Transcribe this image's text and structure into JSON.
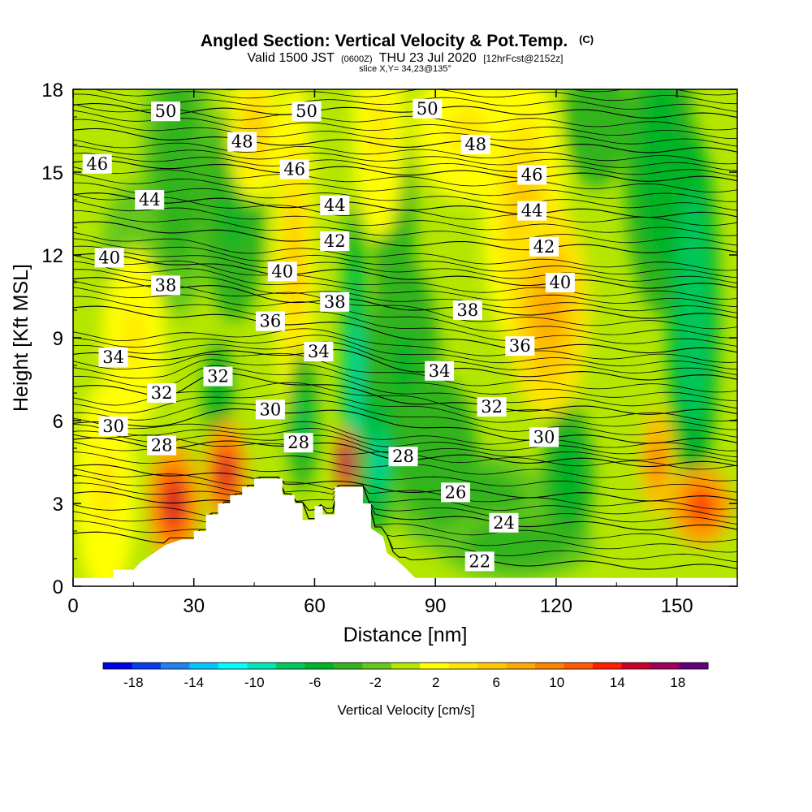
{
  "title": {
    "main": "Angled Section: Vertical Velocity & Pot.Temp.",
    "main_suffix": "(C)",
    "valid_prefix": "Valid 1500 JST",
    "valid_utc": "(0600Z)",
    "valid_date": "THU 23 Jul 2020",
    "forecast": "[12hrFcst@2152z]",
    "slice": "slice X,Y= 34,23@135°"
  },
  "chart_data": {
    "type": "heatmap",
    "xlabel": "Distance [nm]",
    "ylabel": "Height [Kft MSL]",
    "xlim": [
      0,
      165
    ],
    "ylim": [
      0,
      18
    ],
    "x_ticks": [
      "0",
      "30",
      "60",
      "90",
      "120",
      "150"
    ],
    "x_tick_values": [
      0,
      30,
      60,
      90,
      120,
      150
    ],
    "y_ticks": [
      "0",
      "3",
      "6",
      "9",
      "12",
      "15",
      "18"
    ],
    "y_tick_values": [
      0,
      3,
      6,
      9,
      12,
      15,
      18
    ],
    "colorbar": {
      "title": "Vertical Velocity [cm/s]",
      "tick_labels": [
        "-18",
        "-14",
        "-10",
        "-6",
        "-2",
        "2",
        "6",
        "10",
        "14",
        "18"
      ],
      "levels": [
        -20,
        -18,
        -16,
        -14,
        -12,
        -10,
        -8,
        -6,
        -4,
        -2,
        0,
        2,
        4,
        6,
        8,
        10,
        12,
        14,
        16,
        18,
        20
      ],
      "colors": [
        "#0000e6",
        "#0a3ceb",
        "#1e82f0",
        "#00c8ff",
        "#00ffff",
        "#00e6b4",
        "#00c85a",
        "#00b428",
        "#32b41e",
        "#64c81e",
        "#b4e600",
        "#ffff00",
        "#ffe600",
        "#ffc800",
        "#ffaa00",
        "#ff8200",
        "#ff5a00",
        "#ff1e00",
        "#c8002a",
        "#a0005a",
        "#640080"
      ]
    },
    "terrain_profile": [
      [
        0,
        0.3
      ],
      [
        10,
        0.3
      ],
      [
        10,
        0.6
      ],
      [
        15,
        0.6
      ],
      [
        17,
        0.9
      ],
      [
        20,
        1.2
      ],
      [
        23,
        1.5
      ],
      [
        27,
        1.7
      ],
      [
        30,
        1.7
      ],
      [
        30,
        2.0
      ],
      [
        33,
        2.0
      ],
      [
        33,
        2.6
      ],
      [
        36,
        2.6
      ],
      [
        36,
        3.0
      ],
      [
        39,
        3.0
      ],
      [
        39,
        3.3
      ],
      [
        42,
        3.3
      ],
      [
        42,
        3.6
      ],
      [
        45,
        3.6
      ],
      [
        45,
        3.9
      ],
      [
        52,
        3.9
      ],
      [
        52,
        3.3
      ],
      [
        55,
        3.3
      ],
      [
        55,
        3.0
      ],
      [
        57,
        3.0
      ],
      [
        57,
        2.4
      ],
      [
        60,
        2.4
      ],
      [
        60,
        2.9
      ],
      [
        62,
        2.9
      ],
      [
        62,
        2.6
      ],
      [
        65,
        2.6
      ],
      [
        65,
        3.6
      ],
      [
        72,
        3.6
      ],
      [
        72,
        3.0
      ],
      [
        74,
        3.0
      ],
      [
        74,
        2.1
      ],
      [
        77,
        1.8
      ],
      [
        78,
        1.2
      ],
      [
        80,
        1.0
      ],
      [
        83,
        0.6
      ],
      [
        85,
        0.3
      ],
      [
        165,
        0.3
      ]
    ],
    "theta_contour_labels": [
      {
        "label": "50",
        "x": 23,
        "y": 17.2
      },
      {
        "label": "50",
        "x": 58,
        "y": 17.2
      },
      {
        "label": "50",
        "x": 88,
        "y": 17.3
      },
      {
        "label": "48",
        "x": 42,
        "y": 16.1
      },
      {
        "label": "48",
        "x": 100,
        "y": 16.0
      },
      {
        "label": "46",
        "x": 6,
        "y": 15.3
      },
      {
        "label": "46",
        "x": 55,
        "y": 15.1
      },
      {
        "label": "46",
        "x": 114,
        "y": 14.9
      },
      {
        "label": "44",
        "x": 19,
        "y": 14.0
      },
      {
        "label": "44",
        "x": 65,
        "y": 13.8
      },
      {
        "label": "44",
        "x": 114,
        "y": 13.6
      },
      {
        "label": "42",
        "x": 65,
        "y": 12.5
      },
      {
        "label": "42",
        "x": 117,
        "y": 12.3
      },
      {
        "label": "40",
        "x": 9,
        "y": 11.9
      },
      {
        "label": "40",
        "x": 52,
        "y": 11.4
      },
      {
        "label": "40",
        "x": 121,
        "y": 11.0
      },
      {
        "label": "38",
        "x": 23,
        "y": 10.9
      },
      {
        "label": "38",
        "x": 65,
        "y": 10.3
      },
      {
        "label": "38",
        "x": 98,
        "y": 10.0
      },
      {
        "label": "36",
        "x": 49,
        "y": 9.6
      },
      {
        "label": "36",
        "x": 111,
        "y": 8.7
      },
      {
        "label": "34",
        "x": 10,
        "y": 8.3
      },
      {
        "label": "34",
        "x": 61,
        "y": 8.5
      },
      {
        "label": "34",
        "x": 91,
        "y": 7.8
      },
      {
        "label": "32",
        "x": 22,
        "y": 7.0
      },
      {
        "label": "32",
        "x": 36,
        "y": 7.6
      },
      {
        "label": "32",
        "x": 104,
        "y": 6.5
      },
      {
        "label": "30",
        "x": 10,
        "y": 5.8
      },
      {
        "label": "30",
        "x": 49,
        "y": 6.4
      },
      {
        "label": "30",
        "x": 117,
        "y": 5.4
      },
      {
        "label": "28",
        "x": 22,
        "y": 5.1
      },
      {
        "label": "28",
        "x": 56,
        "y": 5.2
      },
      {
        "label": "28",
        "x": 82,
        "y": 4.7
      },
      {
        "label": "26",
        "x": 95,
        "y": 3.4
      },
      {
        "label": "24",
        "x": 107,
        "y": 2.3
      },
      {
        "label": "22",
        "x": 101,
        "y": 0.9
      }
    ],
    "vertical_velocity_cells": [
      {
        "x": 25,
        "y": 3.0,
        "sx": 5,
        "sy": 1.7,
        "v": 17
      },
      {
        "x": 38,
        "y": 4.1,
        "sx": 4,
        "sy": 1.5,
        "v": 16
      },
      {
        "x": 68,
        "y": 4.5,
        "sx": 2,
        "sy": 0.9,
        "v": 22
      },
      {
        "x": 145,
        "y": 4.5,
        "sx": 3,
        "sy": 1.5,
        "v": 12
      },
      {
        "x": 156,
        "y": 2.9,
        "sx": 6,
        "sy": 1.1,
        "v": 15
      },
      {
        "x": 118,
        "y": 10.0,
        "sx": 8,
        "sy": 3.0,
        "v": 9
      },
      {
        "x": 112,
        "y": 13.5,
        "sx": 8,
        "sy": 4.0,
        "v": 6
      },
      {
        "x": 98,
        "y": 16.5,
        "sx": 10,
        "sy": 2.0,
        "v": 5
      },
      {
        "x": 55,
        "y": 12.0,
        "sx": 4,
        "sy": 5.0,
        "v": 6
      },
      {
        "x": 76,
        "y": 16.5,
        "sx": 5,
        "sy": 3.0,
        "v": 5
      },
      {
        "x": 45,
        "y": 16.5,
        "sx": 5,
        "sy": 2.0,
        "v": 6
      },
      {
        "x": 15,
        "y": 9.0,
        "sx": 6,
        "sy": 2.5,
        "v": 5
      },
      {
        "x": 8,
        "y": 3.5,
        "sx": 6,
        "sy": 3.0,
        "v": 5
      },
      {
        "x": 70,
        "y": 7.5,
        "sx": 2.5,
        "sy": 5.0,
        "v": -10
      },
      {
        "x": 76,
        "y": 4.5,
        "sx": 3,
        "sy": 2.0,
        "v": -9
      },
      {
        "x": 57,
        "y": 6.0,
        "sx": 3,
        "sy": 2.0,
        "v": -7
      },
      {
        "x": 82,
        "y": 8.0,
        "sx": 7,
        "sy": 3.0,
        "v": -5
      },
      {
        "x": 90,
        "y": 5.0,
        "sx": 8,
        "sy": 2.0,
        "v": -4
      },
      {
        "x": 99,
        "y": 3.0,
        "sx": 15,
        "sy": 1.5,
        "v": -3
      },
      {
        "x": 123,
        "y": 4.0,
        "sx": 5,
        "sy": 2.0,
        "v": -6
      },
      {
        "x": 110,
        "y": 1.5,
        "sx": 15,
        "sy": 1.0,
        "v": -3
      },
      {
        "x": 154,
        "y": 10.0,
        "sx": 5,
        "sy": 5.0,
        "v": -8
      },
      {
        "x": 146,
        "y": 15.0,
        "sx": 7,
        "sy": 4.0,
        "v": -6
      },
      {
        "x": 40,
        "y": 13.5,
        "sx": 6,
        "sy": 3.0,
        "v": -5
      },
      {
        "x": 36,
        "y": 7.0,
        "sx": 3,
        "sy": 1.5,
        "v": -6
      },
      {
        "x": 80,
        "y": 12.0,
        "sx": 4,
        "sy": 4.0,
        "v": -4
      },
      {
        "x": 26,
        "y": 15.0,
        "sx": 7,
        "sy": 4.0,
        "v": -3
      },
      {
        "x": 130,
        "y": 17.0,
        "sx": 6,
        "sy": 2.0,
        "v": -4
      },
      {
        "x": 15,
        "y": 12.0,
        "sx": 6,
        "sy": 2.0,
        "v": -2
      }
    ]
  }
}
